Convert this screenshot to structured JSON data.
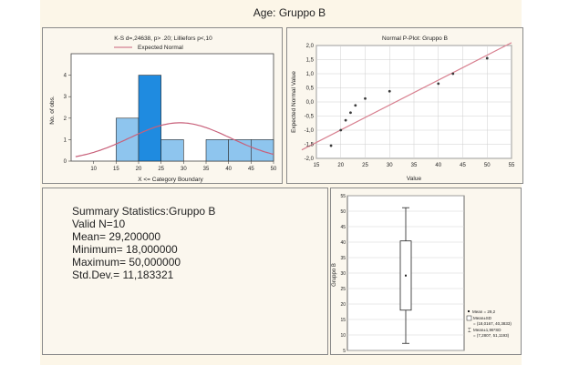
{
  "page_title": "Age: Gruppo B",
  "stats": {
    "heading": "Summary Statistics:Gruppo B",
    "valid": "Valid N=10",
    "mean": "Mean= 29,200000",
    "minimum": "Minimum= 18,000000",
    "maximum": "Maximum= 50,000000",
    "stddev": "Std.Dev.= 11,183321"
  },
  "colors": {
    "bar_fill": "#8ec5ee",
    "bar_highlight": "#1f8be0",
    "normal_curve": "#c8607a",
    "pplot_line": "#d88090",
    "point": "#3a3a3a"
  },
  "chart_data": [
    {
      "type": "bar",
      "title": "K-S d=,24638, p> .20; Lilliefors p<,10",
      "legend": [
        "Expected Normal"
      ],
      "legend_position": "top",
      "xlabel": "X <= Category Boundary",
      "ylabel": "No. of obs.",
      "bins": [
        [
          15,
          20
        ],
        [
          20,
          25
        ],
        [
          25,
          30
        ],
        [
          35,
          40
        ],
        [
          40,
          45
        ],
        [
          45,
          50
        ]
      ],
      "values": [
        2,
        4,
        1,
        1,
        1,
        1
      ],
      "xlim": [
        5,
        50
      ],
      "ylim": [
        0,
        5
      ],
      "xticks": [
        "10",
        "15",
        "20",
        "25",
        "30",
        "35",
        "40",
        "45",
        "50"
      ],
      "yticks": [
        "0",
        "1",
        "2",
        "3",
        "4"
      ],
      "normal_mean": 29.2,
      "normal_sd": 11.183321,
      "bin_width": 5,
      "n": 10,
      "grid": false
    },
    {
      "type": "scatter",
      "title": "Normal P-Plot: Gruppo B",
      "xlabel": "Value",
      "ylabel": "Expected Normal Value",
      "x": [
        18,
        20,
        21,
        22,
        23,
        25,
        30,
        40,
        43,
        50
      ],
      "y": [
        -1.55,
        -1.0,
        -0.65,
        -0.38,
        -0.12,
        0.12,
        0.38,
        0.65,
        1.0,
        1.55
      ],
      "fit_line": [
        [
          12,
          -1.7
        ],
        [
          55,
          2.1
        ]
      ],
      "xlim": [
        15,
        55
      ],
      "ylim": [
        -2.0,
        2.0
      ],
      "xticks": [
        "15",
        "20",
        "25",
        "30",
        "35",
        "40",
        "45",
        "50",
        "55"
      ],
      "yticks": [
        "-2,0",
        "-1,5",
        "-1,0",
        "-0,5",
        "0,0",
        "0,5",
        "1,0",
        "1,5",
        "2,0"
      ],
      "grid": true
    },
    {
      "type": "box",
      "ylabel": "Gruppo B",
      "ylim": [
        5,
        55
      ],
      "yticks": [
        "5",
        "10",
        "15",
        "20",
        "25",
        "30",
        "35",
        "40",
        "45",
        "50",
        "55"
      ],
      "mean": 29.2,
      "box_low": 18.0167,
      "box_high": 40.3833,
      "whisker_low": 7.2807,
      "whisker_high": 51.1193,
      "legend": [
        "Mean = 29,2",
        "Mean±SD",
        "= (18,0167, 40,3833)",
        "Mean±1,96*SD",
        "= (7,2807, 51,1193)"
      ],
      "legend_position": "bottom-right",
      "grid": true
    }
  ]
}
